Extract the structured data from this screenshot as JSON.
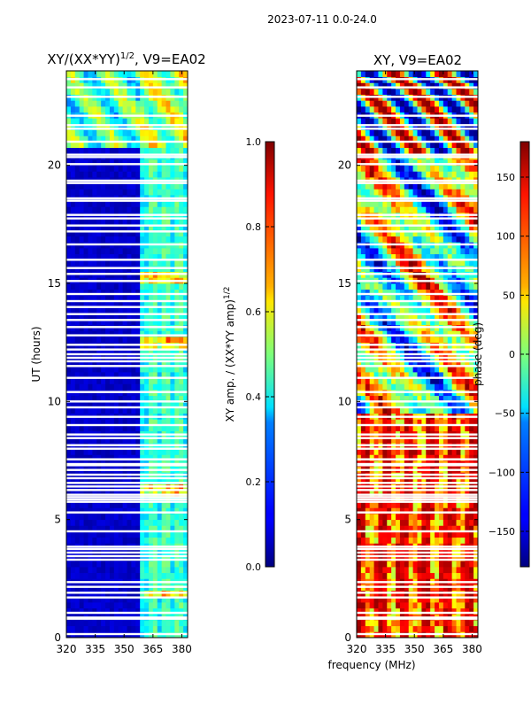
{
  "figure": {
    "suptitle": "2023-07-11 0.0-24.0",
    "shared_xlabel": "frequency (MHz)"
  },
  "chart_data": [
    {
      "type": "heatmap",
      "title_main": "XY/(XX*YY)",
      "title_exp": "1/2",
      "title_tail": ", V9=EA02",
      "xlabel": "frequency (MHz)",
      "ylabel": "UT (hours)",
      "x_ticks": [
        320,
        335,
        350,
        365,
        380
      ],
      "y_ticks": [
        0,
        5,
        10,
        15,
        20
      ],
      "xlim": [
        320,
        383
      ],
      "ylim": [
        0,
        24
      ],
      "colormap": "jet",
      "colorbar": {
        "label_main": "XY amp. / (XX*YY amp)",
        "label_exp": "1/2",
        "range": [
          0.0,
          1.0
        ],
        "ticks": [
          "0.0",
          "0.2",
          "0.4",
          "0.6",
          "0.8",
          "1.0"
        ],
        "tick_values": [
          0.0,
          0.2,
          0.4,
          0.6,
          0.8,
          1.0
        ]
      }
    },
    {
      "type": "heatmap",
      "title": "XY, V9=EA02",
      "xlabel": "frequency (MHz)",
      "ylabel": "",
      "x_ticks": [
        320,
        335,
        350,
        365,
        380
      ],
      "y_ticks": [
        0,
        5,
        10,
        15,
        20
      ],
      "xlim": [
        320,
        383
      ],
      "ylim": [
        0,
        24
      ],
      "colormap": "jet",
      "colorbar": {
        "label": "phase (deg)",
        "range": [
          -180,
          180
        ],
        "ticks": [
          "150",
          "100",
          "50",
          "0",
          "−50",
          "−100",
          "−150"
        ],
        "tick_values": [
          150,
          100,
          50,
          0,
          -50,
          -100,
          -150
        ]
      }
    }
  ],
  "flagged_ut_hours": [
    0.15,
    0.8,
    0.85,
    1.05,
    1.7,
    1.9,
    2.15,
    2.35,
    3.3,
    3.45,
    3.6,
    3.75,
    3.85,
    4.5,
    5.3,
    5.75,
    5.85,
    5.95,
    6.05,
    6.25,
    6.4,
    6.55,
    6.75,
    6.9,
    7.1,
    7.3,
    7.35,
    7.55,
    8.0,
    8.15,
    8.45,
    8.6,
    9.0,
    9.35,
    9.75,
    10.0,
    10.4,
    11.0,
    11.5,
    11.7,
    11.85,
    12.0,
    12.2,
    12.4,
    12.8,
    13.15,
    13.45,
    13.7,
    14.0,
    14.25,
    14.55,
    15.1,
    15.4,
    15.65,
    16.0,
    16.65,
    17.2,
    17.45,
    17.75,
    17.9,
    18.5,
    18.6,
    19.25,
    19.35,
    20.05,
    20.35,
    20.45,
    21.0,
    21.55,
    21.7,
    22.1,
    22.9,
    23.3,
    23.65
  ]
}
